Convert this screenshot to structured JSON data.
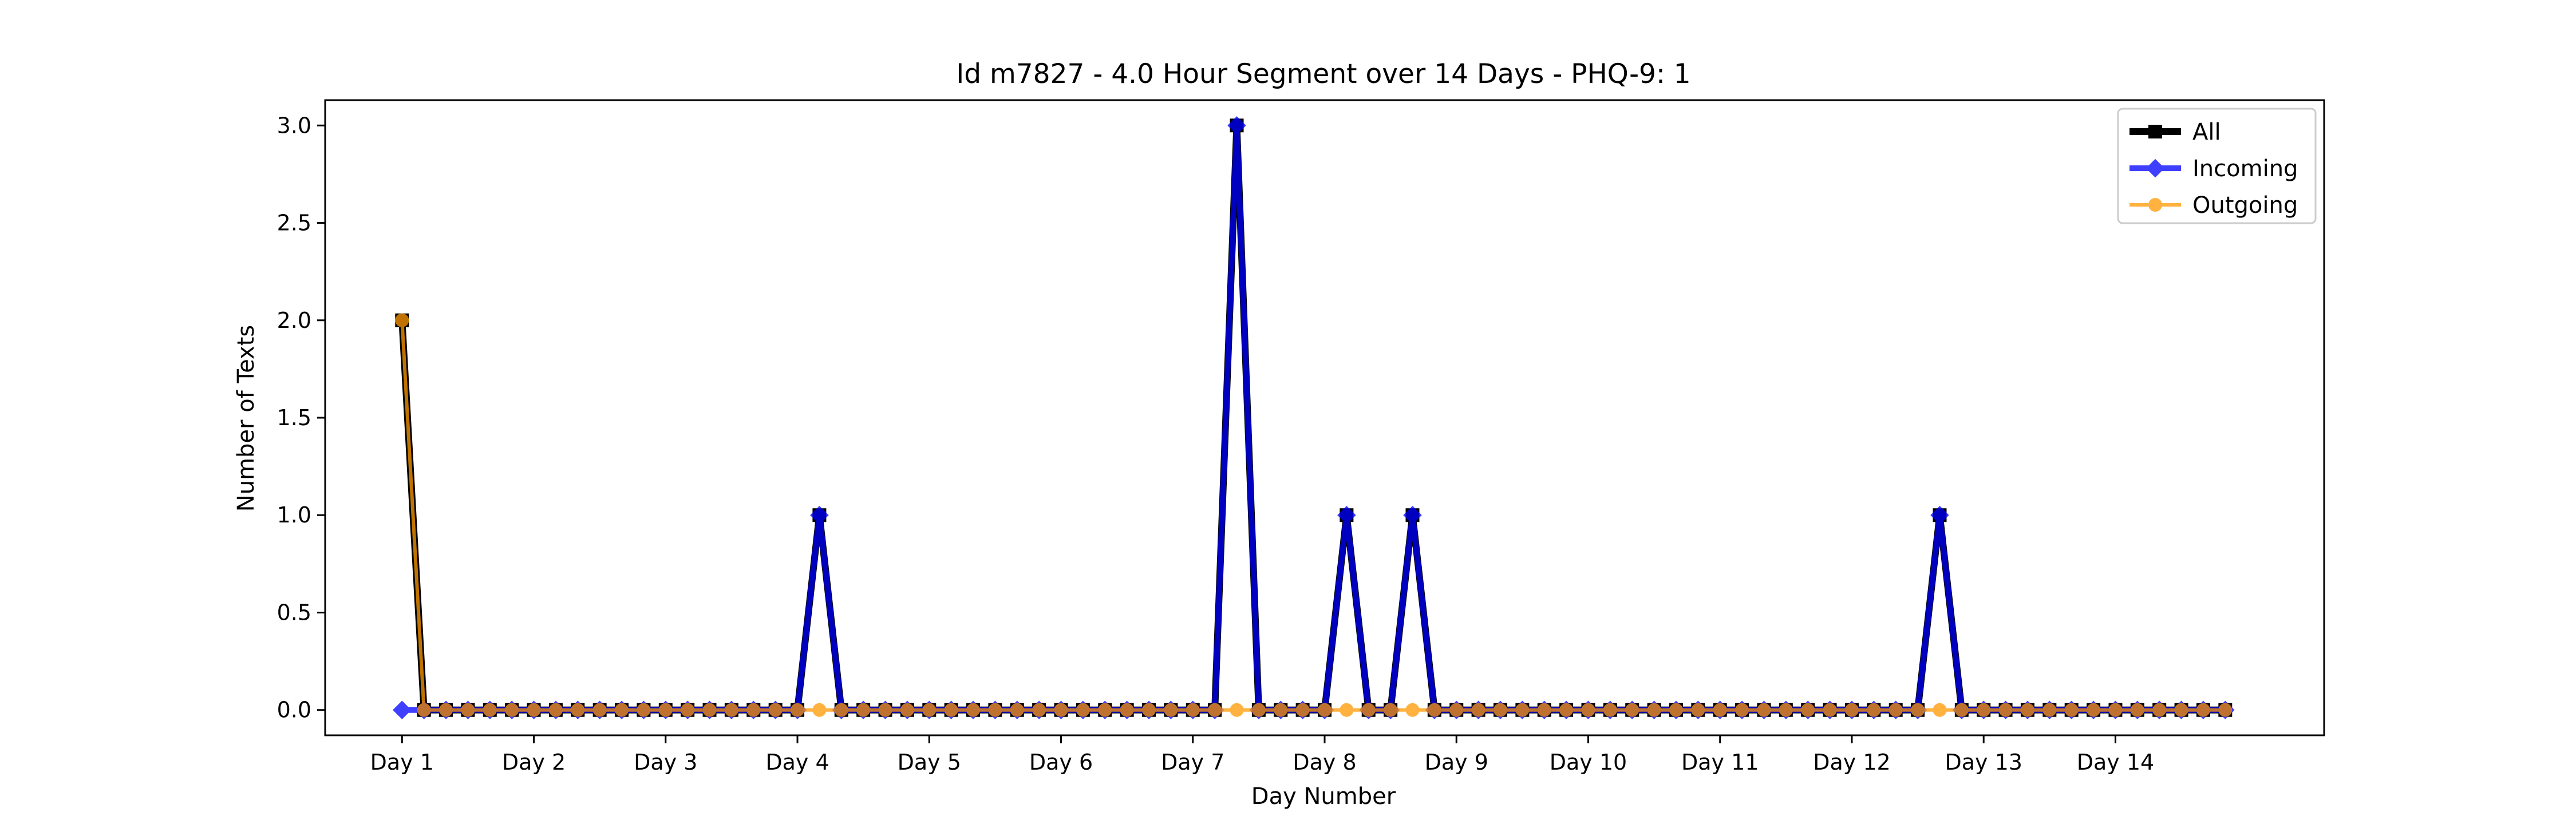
{
  "chart_data": {
    "type": "line",
    "title": "Id m7827 - 4.0 Hour Segment over 14 Days - PHQ-9: 1",
    "xlabel": "Day Number",
    "ylabel": "Number of Texts",
    "ylim": [
      -0.13,
      3.13
    ],
    "xlim": [
      -3.5,
      87.5
    ],
    "y_ticks": [
      0.0,
      0.5,
      1.0,
      1.5,
      2.0,
      2.5,
      3.0
    ],
    "y_tick_labels": [
      "0.0",
      "0.5",
      "1.0",
      "1.5",
      "2.0",
      "2.5",
      "3.0"
    ],
    "x_ticks": [
      0,
      6,
      12,
      18,
      24,
      30,
      36,
      42,
      48,
      54,
      60,
      66,
      72,
      78
    ],
    "x_tick_labels": [
      "Day 1",
      "Day 2",
      "Day 3",
      "Day 4",
      "Day 5",
      "Day 6",
      "Day 7",
      "Day 8",
      "Day 9",
      "Day 10",
      "Day 11",
      "Day 12",
      "Day 13",
      "Day 14"
    ],
    "grid": false,
    "legend_position": "top-right",
    "x": [
      0,
      1,
      2,
      3,
      4,
      5,
      6,
      7,
      8,
      9,
      10,
      11,
      12,
      13,
      14,
      15,
      16,
      17,
      18,
      19,
      20,
      21,
      22,
      23,
      24,
      25,
      26,
      27,
      28,
      29,
      30,
      31,
      32,
      33,
      34,
      35,
      36,
      37,
      38,
      39,
      40,
      41,
      42,
      43,
      44,
      45,
      46,
      47,
      48,
      49,
      50,
      51,
      52,
      53,
      54,
      55,
      56,
      57,
      58,
      59,
      60,
      61,
      62,
      63,
      64,
      65,
      66,
      67,
      68,
      69,
      70,
      71,
      72,
      73,
      74,
      75,
      76,
      77,
      78,
      79,
      80,
      81,
      82,
      83
    ],
    "series": [
      {
        "name": "All",
        "color": "#000000",
        "marker": "square",
        "values": [
          2,
          0,
          0,
          0,
          0,
          0,
          0,
          0,
          0,
          0,
          0,
          0,
          0,
          0,
          0,
          0,
          0,
          0,
          0,
          1,
          0,
          0,
          0,
          0,
          0,
          0,
          0,
          0,
          0,
          0,
          0,
          0,
          0,
          0,
          0,
          0,
          0,
          0,
          3,
          0,
          0,
          0,
          0,
          1,
          0,
          0,
          1,
          0,
          0,
          0,
          0,
          0,
          0,
          0,
          0,
          0,
          0,
          0,
          0,
          0,
          0,
          0,
          0,
          0,
          0,
          0,
          0,
          0,
          0,
          0,
          1,
          0,
          0,
          0,
          0,
          0,
          0,
          0,
          0,
          0,
          0,
          0,
          0,
          0
        ]
      },
      {
        "name": "Incoming",
        "color": "#0000ff",
        "marker": "diamond",
        "values": [
          0,
          0,
          0,
          0,
          0,
          0,
          0,
          0,
          0,
          0,
          0,
          0,
          0,
          0,
          0,
          0,
          0,
          0,
          0,
          1,
          0,
          0,
          0,
          0,
          0,
          0,
          0,
          0,
          0,
          0,
          0,
          0,
          0,
          0,
          0,
          0,
          0,
          0,
          3,
          0,
          0,
          0,
          0,
          1,
          0,
          0,
          1,
          0,
          0,
          0,
          0,
          0,
          0,
          0,
          0,
          0,
          0,
          0,
          0,
          0,
          0,
          0,
          0,
          0,
          0,
          0,
          0,
          0,
          0,
          0,
          1,
          0,
          0,
          0,
          0,
          0,
          0,
          0,
          0,
          0,
          0,
          0,
          0,
          0
        ]
      },
      {
        "name": "Outgoing",
        "color": "#ff9900",
        "marker": "circle",
        "values": [
          2,
          0,
          0,
          0,
          0,
          0,
          0,
          0,
          0,
          0,
          0,
          0,
          0,
          0,
          0,
          0,
          0,
          0,
          0,
          0,
          0,
          0,
          0,
          0,
          0,
          0,
          0,
          0,
          0,
          0,
          0,
          0,
          0,
          0,
          0,
          0,
          0,
          0,
          0,
          0,
          0,
          0,
          0,
          0,
          0,
          0,
          0,
          0,
          0,
          0,
          0,
          0,
          0,
          0,
          0,
          0,
          0,
          0,
          0,
          0,
          0,
          0,
          0,
          0,
          0,
          0,
          0,
          0,
          0,
          0,
          0,
          0,
          0,
          0,
          0,
          0,
          0,
          0,
          0,
          0,
          0,
          0,
          0,
          0
        ]
      }
    ]
  }
}
